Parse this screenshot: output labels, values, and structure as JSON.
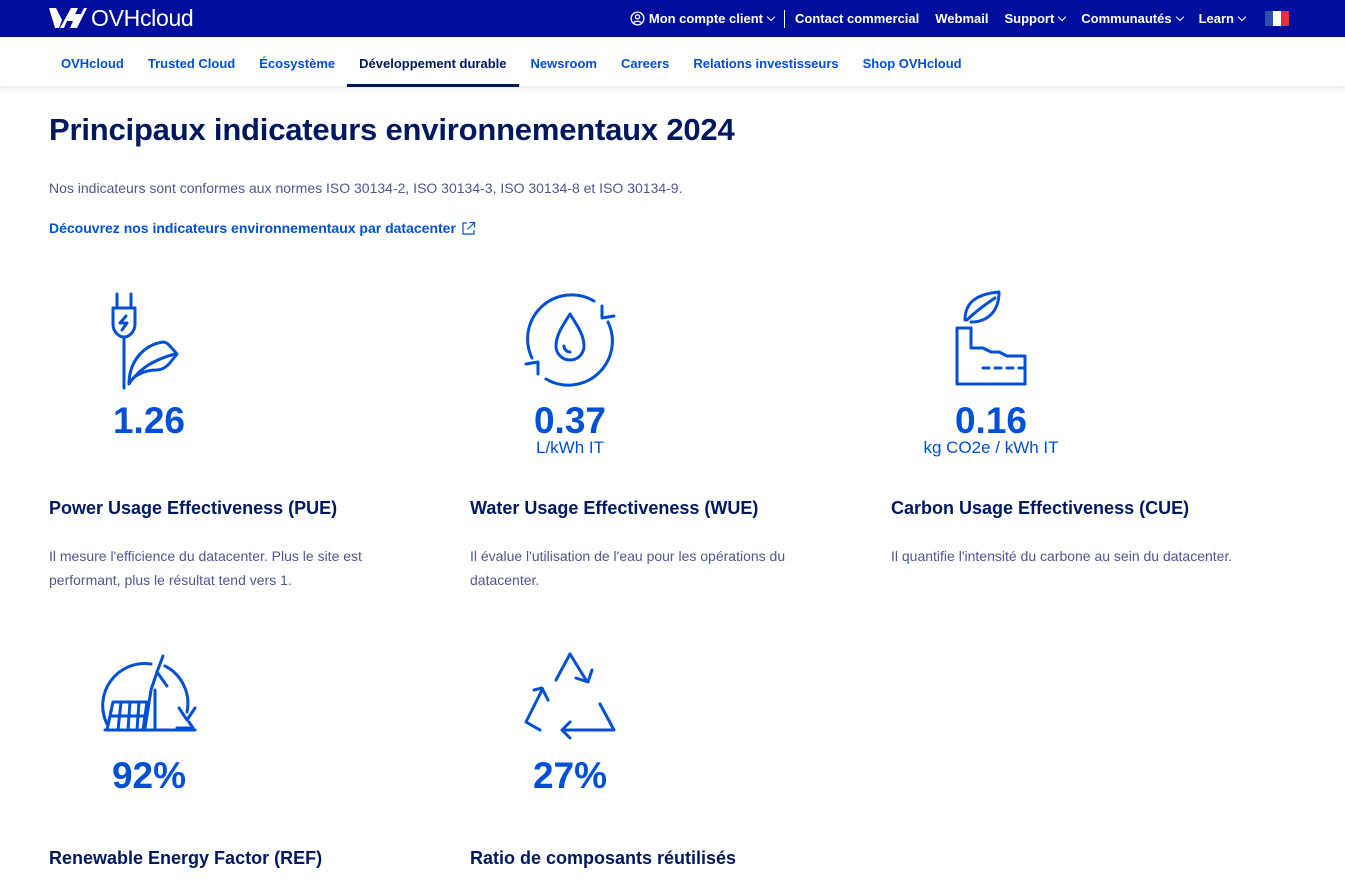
{
  "header": {
    "logo_text": "OVHcloud",
    "nav": [
      {
        "label": "Mon compte client",
        "has_dropdown": true,
        "icon": "user-icon"
      },
      {
        "label": "Contact commercial",
        "has_dropdown": false
      },
      {
        "label": "Webmail",
        "has_dropdown": false
      },
      {
        "label": "Support",
        "has_dropdown": true
      },
      {
        "label": "Communautés",
        "has_dropdown": true
      },
      {
        "label": "Learn",
        "has_dropdown": true
      }
    ],
    "flag": "france-flag-icon",
    "colors": {
      "bar": "#000e9c",
      "text": "#ffffff"
    }
  },
  "subnav": {
    "items": [
      {
        "label": "OVHcloud"
      },
      {
        "label": "Trusted Cloud"
      },
      {
        "label": "Écosystème"
      },
      {
        "label": "Développement durable",
        "active": true
      },
      {
        "label": "Newsroom"
      },
      {
        "label": "Careers"
      },
      {
        "label": "Relations investisseurs"
      },
      {
        "label": "Shop OVHcloud"
      }
    ]
  },
  "main": {
    "title": "Principaux indicateurs environnementaux 2024",
    "intro": "Nos indicateurs sont conformes aux normes ISO 30134-2, ISO 30134-3, ISO 30134-8 et ISO 30134-9.",
    "link": "Découvrez nos indicateurs environnementaux par datacenter",
    "indicators": [
      {
        "icon": "plug-leaf-icon",
        "value": "1.26",
        "unit": "",
        "name": "Power Usage Effectiveness (PUE)",
        "desc": "Il mesure l'efficience du datacenter. Plus le site est performant, plus le résultat tend vers 1."
      },
      {
        "icon": "water-cycle-icon",
        "value": "0.37",
        "unit": "L/kWh IT",
        "name": "Water Usage Effectiveness (WUE)",
        "desc": "Il évalue l'utilisation de l'eau pour les opérations du datacenter."
      },
      {
        "icon": "factory-leaf-icon",
        "value": "0.16",
        "unit": "kg CO2e / kWh IT",
        "name": "Carbon Usage Effectiveness (CUE)",
        "desc": "Il quantifie l'intensité du carbone au sein du datacenter."
      },
      {
        "icon": "renewable-energy-icon",
        "value": "92%",
        "unit": "",
        "name": "Renewable Energy Factor (REF)",
        "desc": ""
      },
      {
        "icon": "recycle-icon",
        "value": "27%",
        "unit": "",
        "name": "Ratio de composants réutilisés",
        "desc": ""
      }
    ],
    "colors": {
      "accent": "#0050d7",
      "heading": "#00185e",
      "body": "#4d5693"
    }
  }
}
